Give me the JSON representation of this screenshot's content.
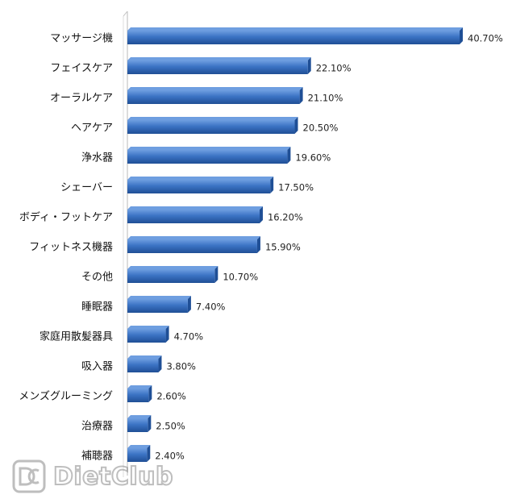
{
  "chart_data": {
    "type": "bar",
    "orientation": "horizontal",
    "categories": [
      "マッサージ機",
      "フェイスケア",
      "オーラルケア",
      "ヘアケア",
      "浄水器",
      "シェーバー",
      "ボディ・フットケア",
      "フィットネス機器",
      "その他",
      "睡眠器",
      "家庭用散髪器具",
      "吸入器",
      "メンズグルーミング",
      "治療器",
      "補聴器"
    ],
    "values": [
      40.7,
      22.1,
      21.1,
      20.5,
      19.6,
      17.5,
      16.2,
      15.9,
      10.7,
      7.4,
      4.7,
      3.8,
      2.6,
      2.5,
      2.4
    ],
    "value_labels": [
      "40.70%",
      "22.10%",
      "21.10%",
      "20.50%",
      "19.60%",
      "17.50%",
      "16.20%",
      "15.90%",
      "10.70%",
      "7.40%",
      "4.70%",
      "3.80%",
      "2.60%",
      "2.50%",
      "2.40%"
    ],
    "xlim": [
      0,
      40.7
    ],
    "grid": false,
    "legend": "none",
    "bar_color": "#3b73c4",
    "bar_highlight_color": "#6e9ee0",
    "bar_shadow_color": "#1f4f96"
  },
  "watermark": {
    "text": "DietClub",
    "icon": "dc-logo-icon"
  }
}
